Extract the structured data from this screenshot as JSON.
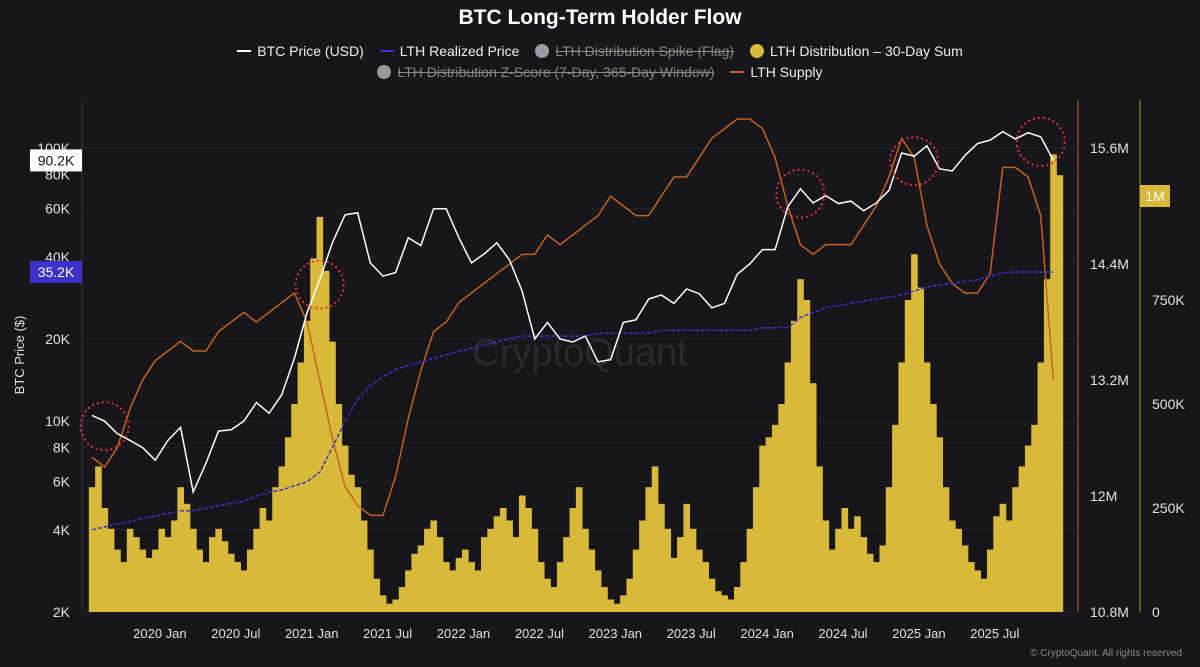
{
  "chart_data": {
    "type": "line+bar",
    "title": "BTC Long-Term Holder Flow",
    "ylabel": "BTC Price ($)",
    "legend": [
      {
        "name": "BTC Price (USD)",
        "color": "#ffffff",
        "kind": "line",
        "enabled": true
      },
      {
        "name": "LTH Realized Price",
        "color": "#3b33c9",
        "kind": "dashed",
        "enabled": true
      },
      {
        "name": "LTH Distribution Spike (Flag)",
        "color": "#9a9aa2",
        "kind": "dot",
        "enabled": false
      },
      {
        "name": "LTH Distribution – 30-Day Sum",
        "color": "#d9b93a",
        "kind": "dot",
        "enabled": true
      },
      {
        "name": "LTH Distribution Z-Score (7-Day, 365-Day Window)",
        "color": "#9a9aa2",
        "kind": "dot",
        "enabled": false
      },
      {
        "name": "LTH Supply",
        "color": "#c4631f",
        "kind": "line",
        "enabled": true
      }
    ],
    "legend_placement": "top",
    "x_start": "2019-07",
    "x_ticks": [
      "2020 Jan",
      "2020 Jul",
      "2021 Jan",
      "2021 Jul",
      "2022 Jan",
      "2022 Jul",
      "2023 Jan",
      "2023 Jul",
      "2024 Jan",
      "2024 Jul",
      "2025 Jan",
      "2025 Jul"
    ],
    "left_axis": {
      "scale": "log",
      "range": [
        2000,
        130000
      ],
      "ticks": [
        2000,
        4000,
        6000,
        8000,
        10000,
        20000,
        40000,
        60000,
        80000,
        100000
      ],
      "tick_labels": [
        "2K",
        "4K",
        "6K",
        "8K",
        "10K",
        "20K",
        "40K",
        "60K",
        "80K",
        "100K"
      ]
    },
    "supply_axis": {
      "range": [
        10.8,
        15.8
      ],
      "ticks": [
        10.8,
        12,
        13.2,
        14.4,
        15.6
      ],
      "tick_labels": [
        "10.8M",
        "12M",
        "13.2M",
        "14.4M",
        "15.6M"
      ]
    },
    "distribution_axis": {
      "range": [
        0,
        1150000
      ],
      "ticks": [
        0,
        250000,
        500000,
        750000
      ],
      "tick_labels": [
        "0",
        "250K",
        "500K",
        "750K"
      ]
    },
    "grid": true,
    "price_tag": "90.2K",
    "realized_tag": "35.2K",
    "distribution_tag": "1M",
    "btc_price": [
      10500,
      10000,
      9000,
      8500,
      8000,
      7200,
      8500,
      9500,
      5500,
      7000,
      9200,
      9300,
      10000,
      11700,
      10700,
      12500,
      17000,
      25000,
      33000,
      45000,
      57000,
      58000,
      38000,
      34000,
      35000,
      47000,
      44000,
      60000,
      60000,
      47000,
      38000,
      41000,
      45000,
      39000,
      30000,
      20000,
      23000,
      20000,
      19500,
      20500,
      16500,
      16800,
      23000,
      23500,
      28000,
      29000,
      27000,
      30500,
      29300,
      26000,
      27000,
      34500,
      37700,
      42500,
      42500,
      61000,
      71000,
      63000,
      67000,
      62700,
      64000,
      59000,
      63000,
      70000,
      96000,
      93500,
      102000,
      84000,
      82500,
      94000,
      104000,
      107000,
      115000,
      108000,
      114000,
      110000,
      90200
    ],
    "lth_realized_price": [
      4000,
      4100,
      4200,
      4300,
      4400,
      4500,
      4600,
      4700,
      4700,
      4800,
      4900,
      5000,
      5100,
      5300,
      5500,
      5600,
      5800,
      6000,
      6500,
      8000,
      10000,
      12000,
      13500,
      14500,
      15500,
      16000,
      16500,
      17000,
      17500,
      18000,
      18500,
      19000,
      19500,
      20000,
      20500,
      20500,
      20500,
      20500,
      20500,
      20500,
      21000,
      21000,
      21000,
      21000,
      21000,
      21500,
      21500,
      21500,
      21500,
      21500,
      21500,
      21500,
      21500,
      22000,
      22000,
      22000,
      24000,
      25000,
      26000,
      26500,
      27000,
      27500,
      28000,
      28500,
      29000,
      30000,
      31000,
      31500,
      32000,
      32500,
      33000,
      34000,
      35000,
      35200,
      35200,
      35200,
      35200
    ],
    "lth_supply_millions": [
      12.4,
      12.3,
      12.5,
      12.9,
      13.2,
      13.4,
      13.5,
      13.6,
      13.5,
      13.5,
      13.7,
      13.8,
      13.9,
      13.8,
      13.9,
      14.0,
      14.1,
      13.8,
      13.2,
      12.6,
      12.1,
      11.9,
      11.8,
      11.8,
      12.2,
      12.8,
      13.3,
      13.7,
      13.8,
      14.0,
      14.1,
      14.2,
      14.3,
      14.4,
      14.5,
      14.5,
      14.7,
      14.6,
      14.7,
      14.8,
      14.9,
      15.1,
      15.0,
      14.9,
      14.9,
      15.1,
      15.3,
      15.3,
      15.5,
      15.7,
      15.8,
      15.9,
      15.9,
      15.8,
      15.5,
      15.0,
      14.6,
      14.5,
      14.6,
      14.6,
      14.6,
      14.8,
      15.0,
      15.3,
      15.7,
      15.5,
      14.8,
      14.4,
      14.2,
      14.1,
      14.1,
      14.3,
      15.4,
      15.4,
      15.3,
      14.9,
      13.2
    ],
    "lth_distribution_30d_sum_k_semimonthly": [
      300,
      350,
      250,
      200,
      150,
      120,
      200,
      180,
      150,
      130,
      150,
      200,
      180,
      220,
      300,
      260,
      200,
      150,
      120,
      180,
      200,
      170,
      140,
      120,
      100,
      150,
      200,
      250,
      220,
      300,
      350,
      420,
      500,
      600,
      700,
      850,
      950,
      820,
      650,
      500,
      400,
      330,
      300,
      220,
      150,
      80,
      40,
      20,
      30,
      60,
      100,
      140,
      160,
      200,
      220,
      180,
      120,
      100,
      130,
      150,
      120,
      100,
      180,
      200,
      230,
      250,
      220,
      180,
      280,
      250,
      200,
      120,
      80,
      60,
      120,
      180,
      250,
      300,
      200,
      150,
      100,
      60,
      30,
      20,
      40,
      80,
      150,
      220,
      300,
      350,
      260,
      200,
      130,
      180,
      260,
      200,
      150,
      120,
      80,
      50,
      40,
      30,
      60,
      120,
      200,
      300,
      400,
      420,
      450,
      500,
      600,
      700,
      800,
      750,
      550,
      350,
      220,
      150,
      200,
      250,
      200,
      230,
      180,
      140,
      120,
      160,
      300,
      450,
      600,
      750,
      860,
      780,
      600,
      500,
      420,
      300,
      220,
      200,
      160,
      120,
      100,
      80,
      150,
      230,
      260,
      220,
      300,
      350,
      400,
      450,
      600,
      800,
      1100,
      1050
    ],
    "highlighted_peaks": [
      "2019-08",
      "2021-01",
      "2024-03",
      "2024-12",
      "2025-10"
    ],
    "watermark": "CryptoQuant"
  },
  "footer": "© CryptoQuant. All rights reserved"
}
